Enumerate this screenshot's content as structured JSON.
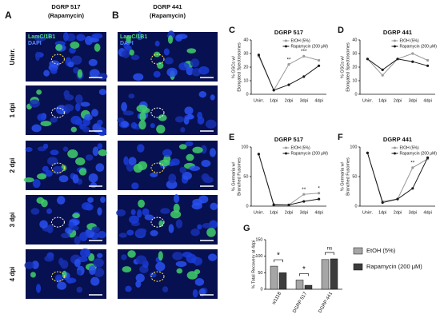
{
  "panels": [
    {
      "letter": "A",
      "title": "DGRP 517",
      "subtitle": "(Rapamycin)"
    },
    {
      "letter": "B",
      "title": "DGRP 441",
      "subtitle": "(Rapamycin)"
    }
  ],
  "rows": [
    "Unirr.",
    "1 dpi",
    "2 dpi",
    "3 dpi",
    "4 dpi"
  ],
  "stain": [
    "LamC/1B1",
    "DAPI"
  ],
  "chart_data": [
    {
      "panel": "C",
      "type": "line",
      "title": "DGRP 517",
      "ylabel": [
        "% GSCs w/",
        "Elongated Spectrosomes"
      ],
      "categories": [
        "Unirr.",
        "1dpi",
        "2dpi",
        "3dpi",
        "4dpi"
      ],
      "ylim": [
        0,
        40
      ],
      "yticks": [
        0,
        10,
        20,
        30,
        40
      ],
      "series": [
        {
          "name": "EtOH (5%)",
          "color": "#9a9a9a",
          "values": [
            28,
            3,
            22,
            28,
            25
          ]
        },
        {
          "name": "Rapamycin (200 μM)",
          "color": "#1a1a1a",
          "values": [
            29,
            3,
            7,
            13,
            21
          ]
        }
      ],
      "annotations": [
        {
          "x": "2dpi",
          "text": "**"
        },
        {
          "x": "3dpi",
          "text": "***"
        }
      ]
    },
    {
      "panel": "D",
      "type": "line",
      "title": "DGRP 441",
      "ylabel": [
        "% GSCs w/",
        "Elongated Spectrosomes"
      ],
      "categories": [
        "Unirr.",
        "1dpi",
        "2dpi",
        "3dpi",
        "4dpi"
      ],
      "ylim": [
        0,
        40
      ],
      "yticks": [
        0,
        10,
        20,
        30,
        40
      ],
      "series": [
        {
          "name": "EtOH (5%)",
          "color": "#9a9a9a",
          "values": [
            26,
            14,
            26,
            30,
            25
          ]
        },
        {
          "name": "Rapamycin (200 μM)",
          "color": "#1a1a1a",
          "values": [
            26,
            18,
            26,
            24,
            21
          ]
        }
      ],
      "annotations": []
    },
    {
      "panel": "E",
      "type": "line",
      "title": "DGRP 517",
      "ylabel": [
        "% Germaria w/",
        "Branched Fusomes"
      ],
      "categories": [
        "Unirr.",
        "1dpi",
        "2dpi",
        "3dpi",
        "4dpi"
      ],
      "ylim": [
        0,
        100
      ],
      "yticks": [
        0,
        50,
        100
      ],
      "series": [
        {
          "name": "EtOH (5%)",
          "color": "#9a9a9a",
          "values": [
            88,
            3,
            2,
            20,
            22
          ]
        },
        {
          "name": "Rapamycin (200 μM)",
          "color": "#1a1a1a",
          "values": [
            88,
            2,
            2,
            8,
            12
          ]
        }
      ],
      "annotations": [
        {
          "x": "3dpi",
          "text": "**"
        },
        {
          "x": "4dpi",
          "text": "*"
        }
      ]
    },
    {
      "panel": "F",
      "type": "line",
      "title": "DGRP 441",
      "ylabel": [
        "% Germaria w/",
        "Branched Fusomes"
      ],
      "categories": [
        "Unirr.",
        "1dpi",
        "2dpi",
        "3dpi",
        "4dpi"
      ],
      "ylim": [
        0,
        100
      ],
      "yticks": [
        0,
        50,
        100
      ],
      "series": [
        {
          "name": "EtOH (5%)",
          "color": "#9a9a9a",
          "values": [
            90,
            8,
            12,
            65,
            80
          ]
        },
        {
          "name": "Rapamycin (200 μM)",
          "color": "#1a1a1a",
          "values": [
            90,
            6,
            12,
            30,
            82
          ]
        }
      ],
      "annotations": [
        {
          "x": "3dpi",
          "text": "**"
        }
      ]
    },
    {
      "panel": "G",
      "type": "bar",
      "ylabel": [
        "% Total Recovery at 4dpi"
      ],
      "categories": [
        "w1118",
        "DGRP 517",
        "DGRP 441"
      ],
      "ylim": [
        0,
        150
      ],
      "yticks": [
        0,
        50,
        100,
        150
      ],
      "series": [
        {
          "name": "EtOH (5%)",
          "color": "#a6a6a6",
          "values": [
            70,
            28,
            90
          ]
        },
        {
          "name": "Rapamycin (200 μM)",
          "color": "#3c3c3c",
          "values": [
            50,
            12,
            92
          ]
        }
      ],
      "annotations": [
        {
          "x": "w1118",
          "text": "*"
        },
        {
          "x": "DGRP 517",
          "text": "*"
        },
        {
          "x": "DGRP 441",
          "text": "ns"
        }
      ]
    }
  ]
}
